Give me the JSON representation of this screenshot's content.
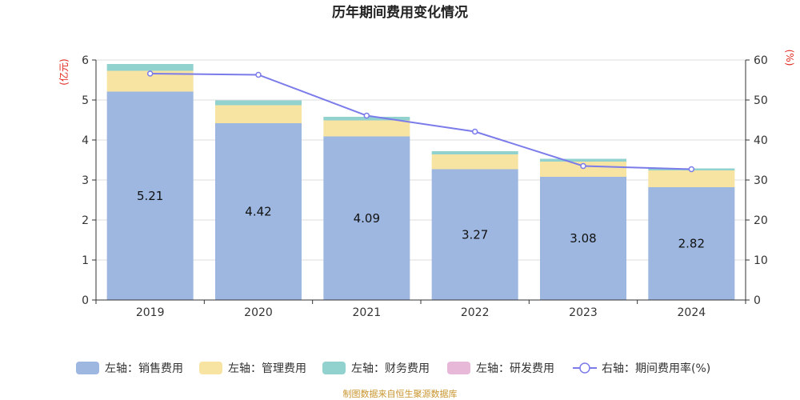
{
  "chart_data": {
    "type": "bar",
    "title": "历年期间费用变化情况",
    "categories": [
      "2019",
      "2020",
      "2021",
      "2022",
      "2023",
      "2024"
    ],
    "left_axis": {
      "unit": "(亿元)",
      "ylim": [
        0,
        6
      ],
      "ticks": [
        "0",
        "1",
        "2",
        "3",
        "4",
        "5",
        "6"
      ]
    },
    "right_axis": {
      "unit": "(%)",
      "ylim": [
        0,
        60
      ],
      "ticks": [
        "0",
        "10",
        "20",
        "30",
        "40",
        "50",
        "60"
      ]
    },
    "stacked": true,
    "series": [
      {
        "name": "左轴：销售费用",
        "type": "bar",
        "axis": "left",
        "color": "#9db7e0",
        "values": [
          5.21,
          4.42,
          4.09,
          3.27,
          3.08,
          2.82
        ],
        "labels": [
          "5.21",
          "4.42",
          "4.09",
          "3.27",
          "3.08",
          "2.82"
        ]
      },
      {
        "name": "左轴：管理费用",
        "type": "bar",
        "axis": "left",
        "color": "#f7e3a2",
        "values": [
          0.52,
          0.45,
          0.4,
          0.37,
          0.38,
          0.42
        ]
      },
      {
        "name": "左轴：财务费用",
        "type": "bar",
        "axis": "left",
        "color": "#91d2cf",
        "values": [
          0.17,
          0.12,
          0.09,
          0.08,
          0.07,
          0.05
        ]
      },
      {
        "name": "左轴：研发费用",
        "type": "bar",
        "axis": "left",
        "color": "#e7b8d8",
        "values": [
          0,
          0,
          0,
          0,
          0,
          0
        ]
      },
      {
        "name": "右轴：期间费用率(%)",
        "type": "line",
        "axis": "right",
        "color": "#7b7bea",
        "values": [
          56.6,
          56.3,
          46.1,
          42.1,
          33.5,
          32.7
        ]
      }
    ],
    "grid": true,
    "legend_position": "bottom"
  },
  "source_text": "制图数据来自恒生聚源数据库"
}
